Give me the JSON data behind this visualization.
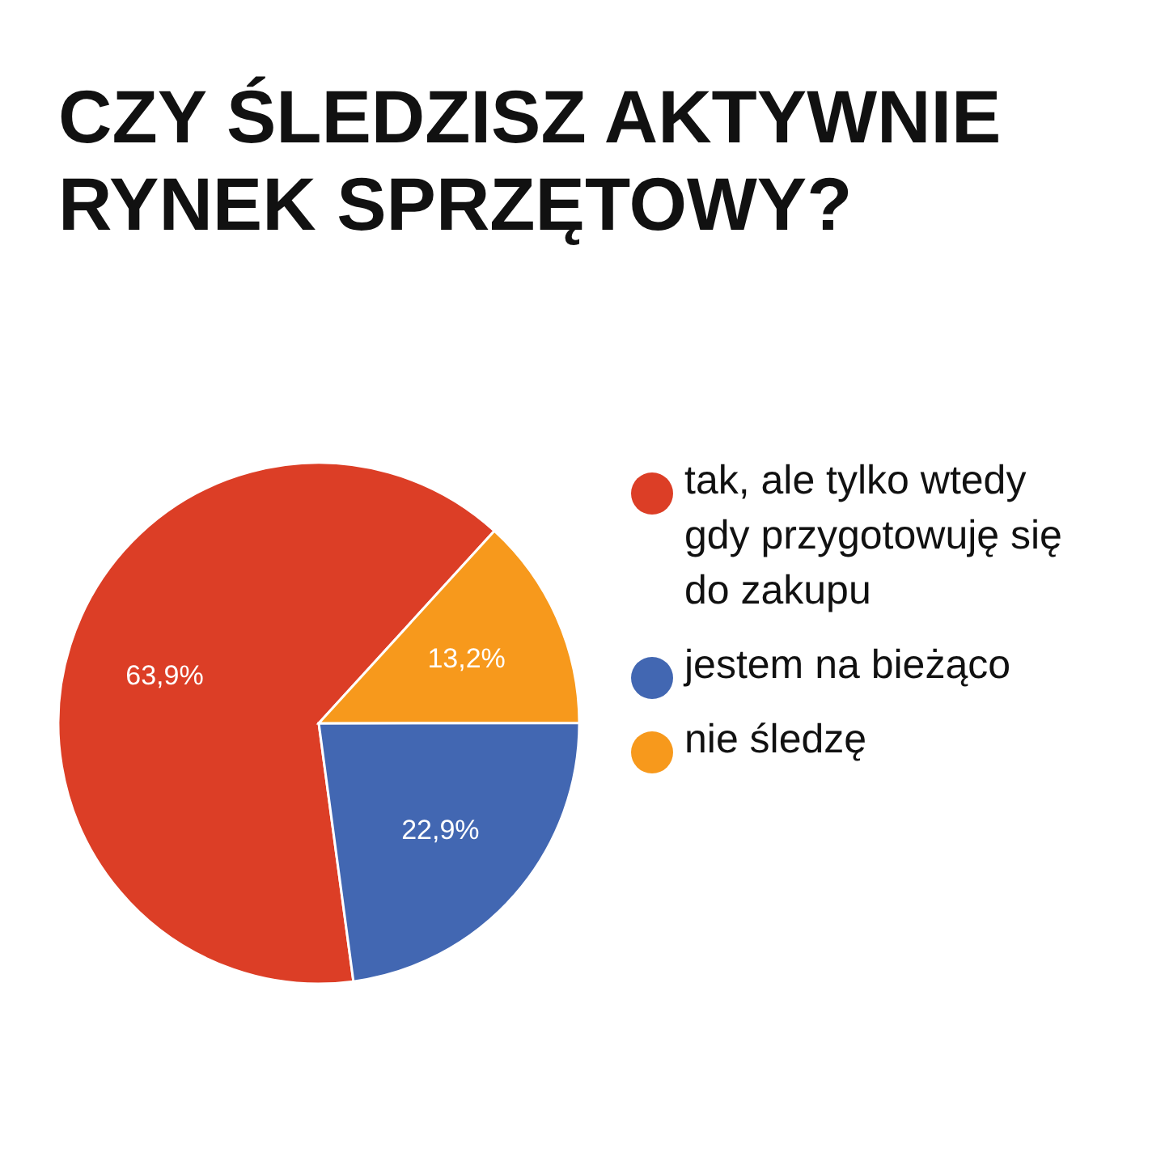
{
  "chart_data": {
    "type": "pie",
    "title": "CZY ŚLEDZISZ AKTYWNIE RYNEK SPRZĘTOWY?",
    "categories": [
      "tak, ale tylko wtedy gdy przygotowuję się do zakupu",
      "jestem na bieżąco",
      "nie śledzę"
    ],
    "values": [
      63.9,
      22.9,
      13.2
    ],
    "colors": [
      "#dc3e26",
      "#4267b2",
      "#f7991c"
    ],
    "value_labels": [
      "63,9%",
      "22,9%",
      "13,2%"
    ],
    "legend": "right"
  }
}
